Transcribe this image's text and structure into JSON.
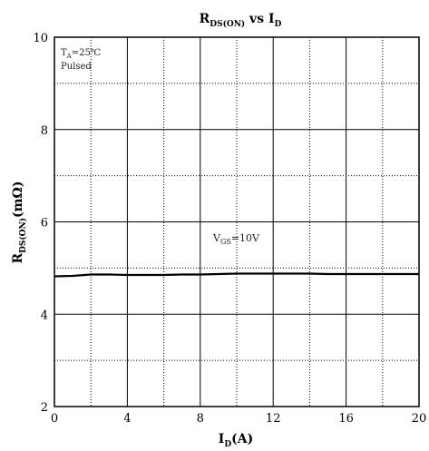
{
  "chart_data": {
    "type": "line",
    "title": {
      "main": "R",
      "sub": "DS(ON)",
      "rest": " vs I",
      "sub2": "D"
    },
    "xlabel": {
      "main": "I",
      "sub": "D",
      "rest": "(A)"
    },
    "ylabel": {
      "main": "R",
      "sub": "DS(ON)",
      "rest": "(mΩ)"
    },
    "xlim": [
      0,
      20
    ],
    "ylim": [
      2,
      10
    ],
    "xticks": [
      0,
      4,
      8,
      12,
      16,
      20
    ],
    "yticks": [
      2,
      4,
      6,
      8,
      10
    ],
    "major_grid_x": [
      0,
      4,
      8,
      12,
      16,
      20
    ],
    "minor_grid_x": [
      2,
      6,
      10,
      14,
      18
    ],
    "major_grid_y": [
      4,
      6,
      8
    ],
    "minor_grid_y": [
      3,
      5,
      7,
      9
    ],
    "annotation": {
      "line1_main": "T",
      "line1_sub": "A",
      "line1_rest": "=25℃",
      "line2": "Pulsed"
    },
    "series": [
      {
        "label_main": "V",
        "label_sub": "GS",
        "label_rest": "=10V",
        "x": [
          0,
          1,
          2,
          3,
          4,
          5,
          6,
          7,
          8,
          9,
          10,
          11,
          12,
          13,
          14,
          15,
          16,
          17,
          18,
          19,
          20
        ],
        "values": [
          4.82,
          4.83,
          4.86,
          4.86,
          4.85,
          4.85,
          4.85,
          4.86,
          4.86,
          4.87,
          4.88,
          4.88,
          4.88,
          4.88,
          4.88,
          4.87,
          4.87,
          4.87,
          4.87,
          4.87,
          4.87
        ]
      }
    ],
    "grid": true,
    "line_color": "#000000"
  }
}
